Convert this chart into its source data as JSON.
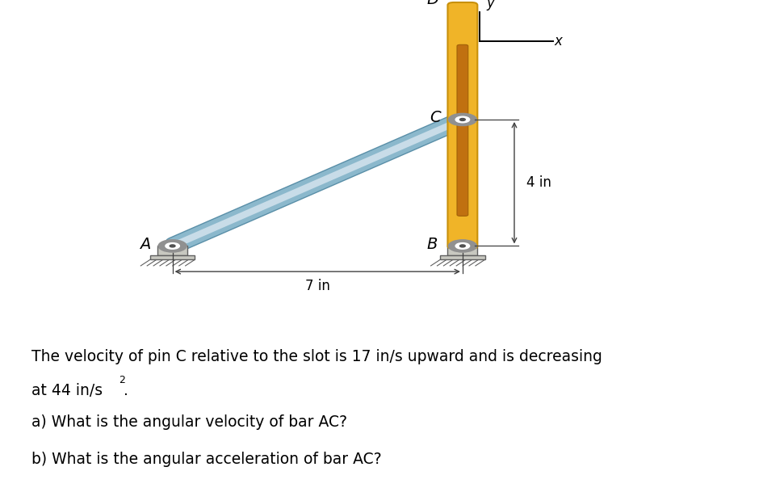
{
  "bg_color": "#ffffff",
  "bar_AC_color_main": "#8bb8cc",
  "bar_AC_color_edge": "#5a8fa8",
  "bar_AC_color_highlight": "#c8dce8",
  "slot_color": "#f0b428",
  "slot_edge_color": "#c8900a",
  "slot_inner_color": "#c07010",
  "ground_face_color": "#c8c8c0",
  "ground_edge_color": "#606060",
  "pin_outer_color": "#909090",
  "pin_inner_color": "#ffffff",
  "pin_dot_color": "#505050",
  "dim_line_color": "#404040",
  "label_A": "A",
  "label_B": "B",
  "label_C": "C",
  "label_D": "D",
  "label_x": "x",
  "label_y": "y",
  "dim_7in": "7 in",
  "dim_4in": "4 in",
  "text_line1": "The velocity of pin C relative to the slot is 17 in/s upward and is decreasing",
  "text_line2": "at 44 in/s",
  "text_superscript": "2",
  "text_period": ".",
  "text_a": "a) What is the angular velocity of bar AC?",
  "text_b": "b) What is the angular acceleration of bar AC?",
  "figsize": [
    9.71,
    6.04
  ],
  "dpi": 100
}
